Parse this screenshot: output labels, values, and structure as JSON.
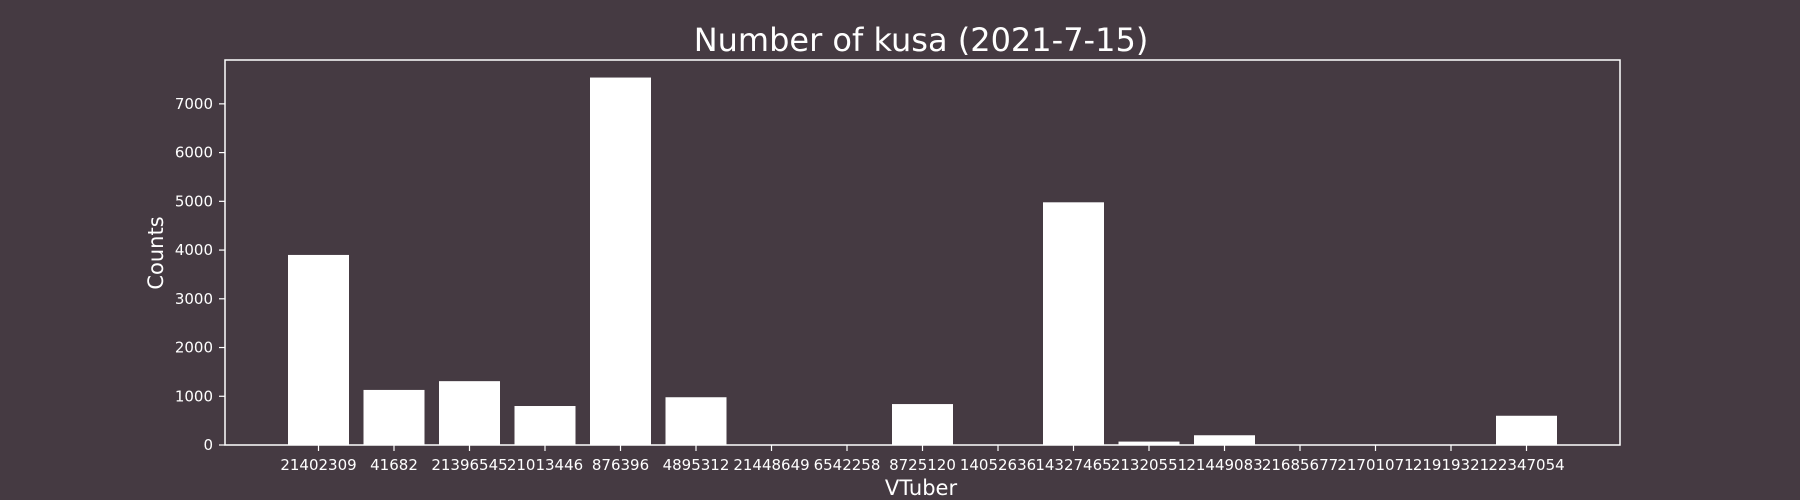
{
  "chart_data": {
    "type": "bar",
    "title": "Number of kusa (2021-7-15)",
    "xlabel": "VTuber",
    "ylabel": "Counts",
    "categories": [
      "21402309",
      "41682",
      "21396545",
      "21013446",
      "876396",
      "4895312",
      "21448649",
      "6542258",
      "8725120",
      "14052636",
      "14327465",
      "21320551",
      "21449083",
      "21685677",
      "21701071",
      "21919321",
      "22347054"
    ],
    "values": [
      3900,
      1130,
      1310,
      800,
      7540,
      980,
      0,
      0,
      840,
      0,
      4980,
      70,
      200,
      0,
      0,
      0,
      600
    ],
    "ylim": [
      0,
      7900
    ],
    "yticks": [
      0,
      1000,
      2000,
      3000,
      4000,
      5000,
      6000,
      7000
    ],
    "grid": false,
    "bar_color": "#ffffff",
    "background": "#453a42",
    "text_color": "#ffffff"
  }
}
